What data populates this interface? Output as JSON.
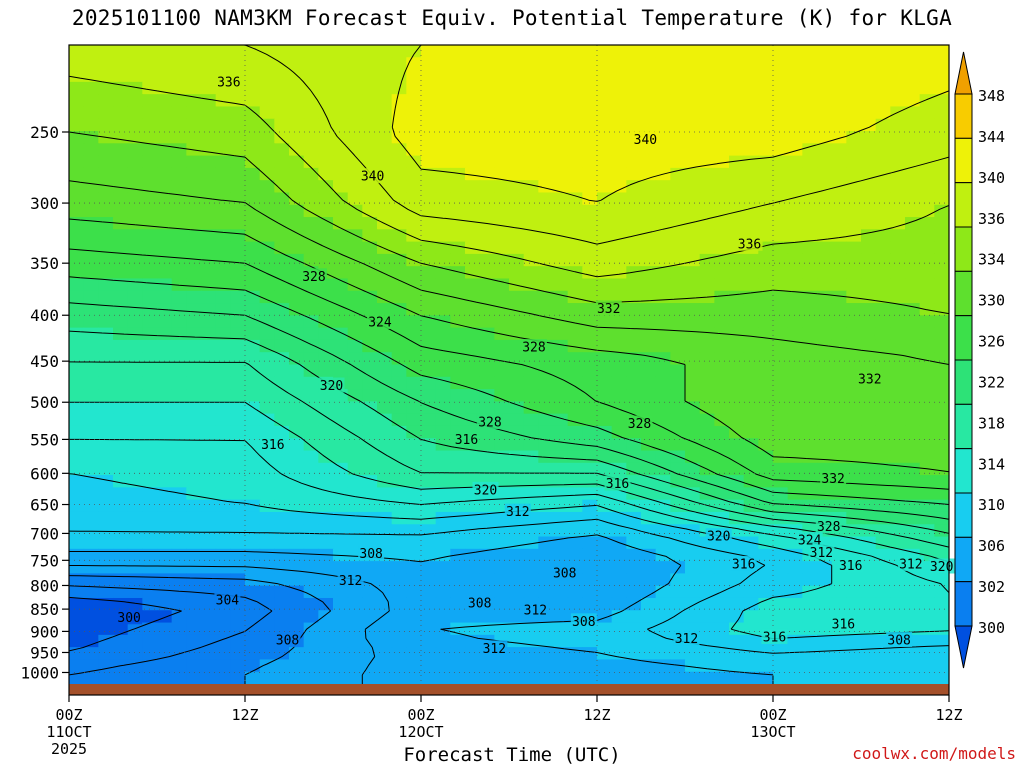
{
  "chart_data": {
    "type": "heatmap",
    "title": "2025101100 NAM3KM Forecast Equiv. Potential Temperature (K) for KLGA",
    "xlabel": "Forecast Time (UTC)",
    "ylabel": "",
    "x_ticks": [
      {
        "hour": 0,
        "label": "00Z",
        "sub": "11OCT",
        "sub2": "2025"
      },
      {
        "hour": 12,
        "label": "12Z",
        "sub": "",
        "sub2": ""
      },
      {
        "hour": 24,
        "label": "00Z",
        "sub": "12OCT",
        "sub2": ""
      },
      {
        "hour": 36,
        "label": "12Z",
        "sub": "",
        "sub2": ""
      },
      {
        "hour": 48,
        "label": "00Z",
        "sub": "13OCT",
        "sub2": ""
      },
      {
        "hour": 60,
        "label": "12Z",
        "sub": "",
        "sub2": ""
      }
    ],
    "xlim_hours": [
      0,
      60
    ],
    "y_ticks": [
      250,
      300,
      350,
      400,
      450,
      500,
      550,
      600,
      650,
      700,
      750,
      800,
      850,
      900,
      950,
      1000
    ],
    "y_unit": "hPa",
    "y_scale": "log-pressure (inverted)",
    "ylim_hpa": [
      200,
      1030
    ],
    "colorbar": {
      "levels": [
        300,
        302,
        306,
        310,
        314,
        318,
        322,
        326,
        330,
        334,
        336,
        340,
        344,
        348
      ],
      "labels": [
        348,
        344,
        340,
        336,
        334,
        330,
        326,
        322,
        318,
        314,
        310,
        306,
        302,
        300
      ],
      "colors": [
        "#0050e0",
        "#0a7ff0",
        "#10a8f5",
        "#18cdf0",
        "#22e6cf",
        "#28e8a2",
        "#2de277",
        "#3ce04a",
        "#5ee02e",
        "#8ee818",
        "#c0f010",
        "#eef208",
        "#f8cc00",
        "#f0a000"
      ],
      "unit": "K"
    },
    "profiles": [
      {
        "hour": 0,
        "theta_e": {
          "1000": 304,
          "950": 302,
          "900": 301,
          "850": 300,
          "800": 304,
          "750": 309,
          "700": 312,
          "650": 313,
          "600": 314,
          "550": 316,
          "500": 318,
          "450": 320,
          "400": 323,
          "350": 327,
          "300": 331,
          "250": 334,
          "200": 337
        }
      },
      {
        "hour": 12,
        "theta_e": {
          "1000": 306,
          "950": 305,
          "900": 304,
          "850": 303,
          "800": 305,
          "750": 309,
          "700": 312,
          "650": 314,
          "600": 315,
          "550": 316,
          "500": 318,
          "450": 320,
          "400": 324,
          "350": 328,
          "300": 332,
          "250": 335,
          "200": 338
        }
      },
      {
        "hour": 24,
        "theta_e": {
          "1000": 309,
          "950": 309,
          "900": 310,
          "850": 309,
          "800": 309,
          "750": 310,
          "700": 312,
          "650": 316,
          "600": 320,
          "550": 322,
          "500": 324,
          "450": 327,
          "400": 330,
          "350": 334,
          "300": 339,
          "250": 341,
          "200": 340
        }
      },
      {
        "hour": 36,
        "theta_e": {
          "1000": 309,
          "950": 310,
          "900": 311,
          "850": 309,
          "800": 308,
          "750": 308,
          "700": 310,
          "650": 314,
          "600": 320,
          "550": 325,
          "500": 328,
          "450": 329,
          "400": 333,
          "350": 337,
          "300": 340,
          "250": 341,
          "200": 341
        }
      },
      {
        "hour": 48,
        "theta_e": {
          "1000": 310,
          "950": 312,
          "900": 315,
          "850": 315,
          "800": 313,
          "750": 312,
          "700": 316,
          "650": 324,
          "600": 329,
          "550": 331,
          "500": 332,
          "450": 331,
          "400": 333,
          "350": 335,
          "300": 338,
          "250": 341,
          "200": 342
        }
      },
      {
        "hour": 60,
        "theta_e": {
          "1000": 310,
          "950": 311,
          "900": 314,
          "850": 316,
          "800": 316,
          "750": 318,
          "700": 322,
          "650": 326,
          "600": 330,
          "550": 331,
          "500": 332,
          "450": 332,
          "400": 334,
          "350": 335,
          "300": 336,
          "250": 339,
          "200": 341
        }
      }
    ],
    "contour_labels": [
      {
        "text": "336",
        "hour": 10.9,
        "p": 220
      },
      {
        "text": "340",
        "hour": 20.7,
        "p": 280
      },
      {
        "text": "340",
        "hour": 39.3,
        "p": 255
      },
      {
        "text": "336",
        "hour": 46.4,
        "p": 333
      },
      {
        "text": "328",
        "hour": 16.7,
        "p": 362
      },
      {
        "text": "324",
        "hour": 21.2,
        "p": 407
      },
      {
        "text": "332",
        "hour": 36.8,
        "p": 393
      },
      {
        "text": "328",
        "hour": 31.7,
        "p": 434
      },
      {
        "text": "320",
        "hour": 17.9,
        "p": 479
      },
      {
        "text": "332",
        "hour": 54.6,
        "p": 471
      },
      {
        "text": "328",
        "hour": 28.7,
        "p": 526
      },
      {
        "text": "328",
        "hour": 38.9,
        "p": 528
      },
      {
        "text": "316",
        "hour": 13.9,
        "p": 557
      },
      {
        "text": "316",
        "hour": 27.1,
        "p": 550
      },
      {
        "text": "316",
        "hour": 37.4,
        "p": 616
      },
      {
        "text": "332",
        "hour": 52.1,
        "p": 608
      },
      {
        "text": "320",
        "hour": 28.4,
        "p": 626
      },
      {
        "text": "312",
        "hour": 30.6,
        "p": 662
      },
      {
        "text": "328",
        "hour": 51.8,
        "p": 688
      },
      {
        "text": "320",
        "hour": 44.3,
        "p": 705
      },
      {
        "text": "324",
        "hour": 50.5,
        "p": 712
      },
      {
        "text": "312",
        "hour": 51.3,
        "p": 735
      },
      {
        "text": "308",
        "hour": 20.6,
        "p": 737
      },
      {
        "text": "316",
        "hour": 46.0,
        "p": 757
      },
      {
        "text": "316",
        "hour": 53.3,
        "p": 760
      },
      {
        "text": "312",
        "hour": 57.4,
        "p": 757
      },
      {
        "text": "320",
        "hour": 59.5,
        "p": 762
      },
      {
        "text": "308",
        "hour": 33.8,
        "p": 775
      },
      {
        "text": "312",
        "hour": 19.2,
        "p": 790
      },
      {
        "text": "304",
        "hour": 10.8,
        "p": 830
      },
      {
        "text": "308",
        "hour": 28.0,
        "p": 837
      },
      {
        "text": "312",
        "hour": 31.8,
        "p": 852
      },
      {
        "text": "300",
        "hour": 4.1,
        "p": 868
      },
      {
        "text": "308",
        "hour": 35.1,
        "p": 877
      },
      {
        "text": "316",
        "hour": 52.8,
        "p": 883
      },
      {
        "text": "308",
        "hour": 14.9,
        "p": 920
      },
      {
        "text": "316",
        "hour": 48.1,
        "p": 913
      },
      {
        "text": "312",
        "hour": 42.1,
        "p": 917
      },
      {
        "text": "308",
        "hour": 56.6,
        "p": 920
      },
      {
        "text": "312",
        "hour": 29.0,
        "p": 940
      }
    ],
    "grid": true
  },
  "credit": "coolwx.com/models"
}
